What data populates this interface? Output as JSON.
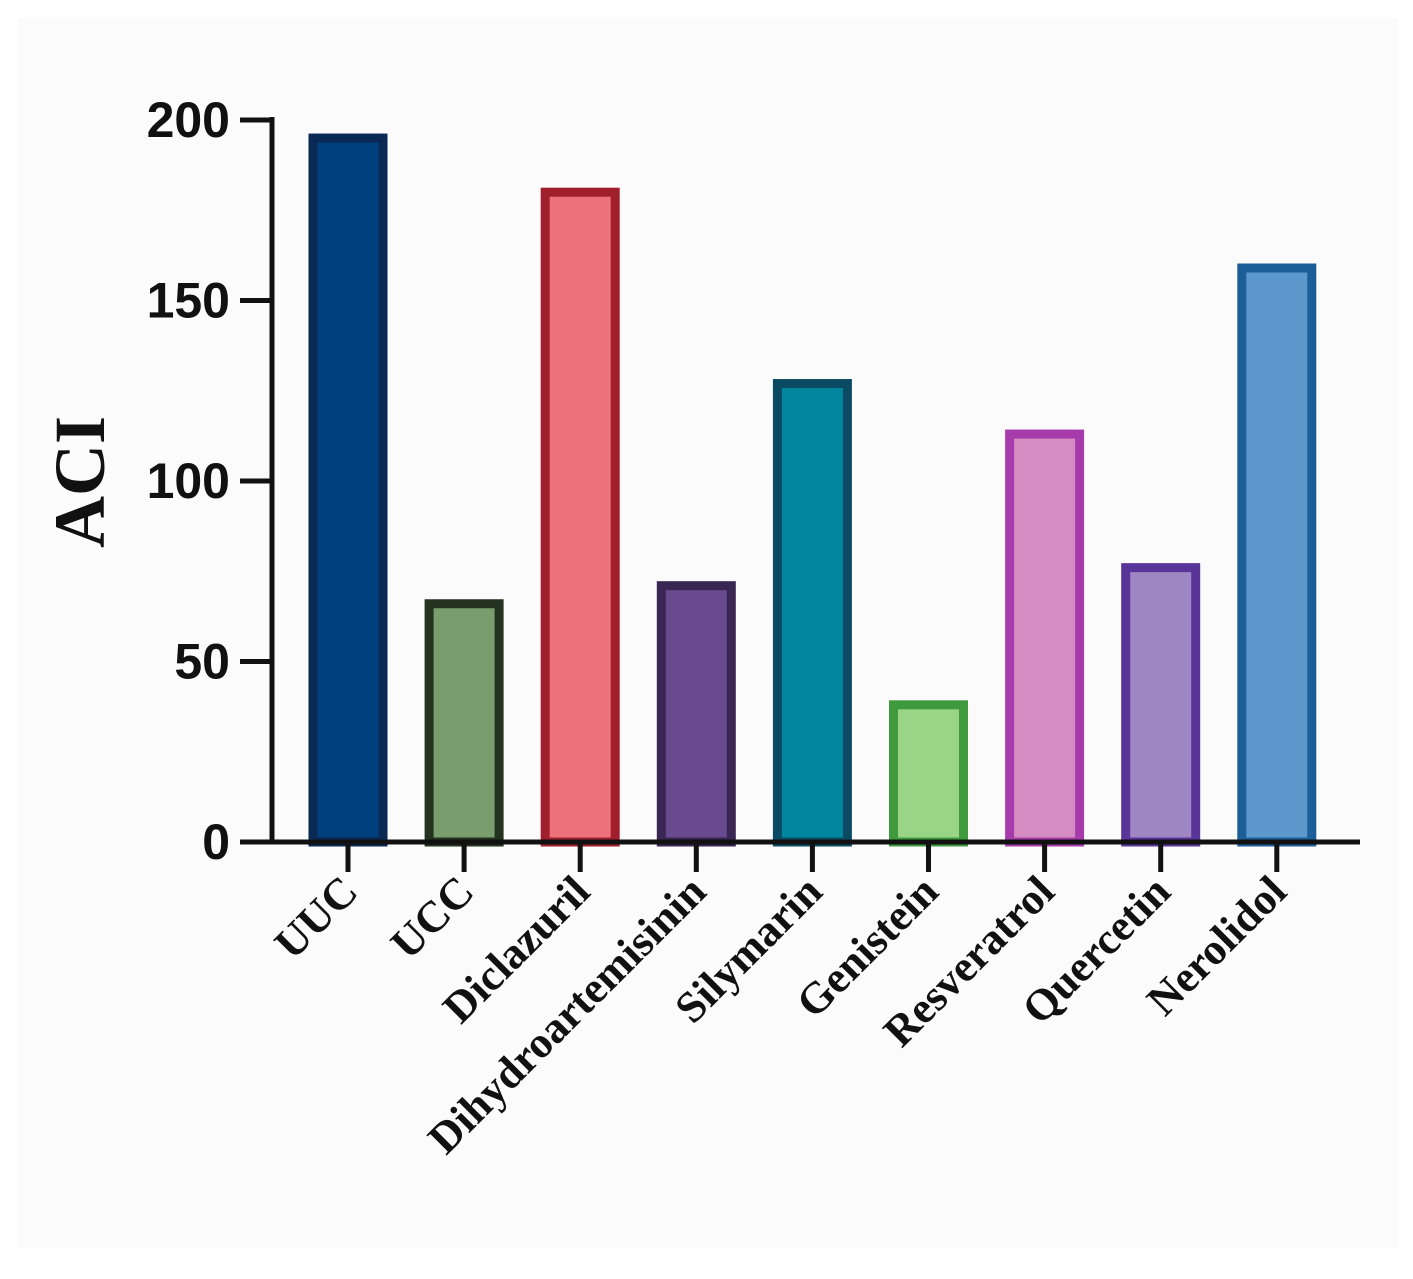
{
  "chart_data": {
    "type": "bar",
    "title": "",
    "xlabel": "",
    "ylabel": "ACI",
    "ylim": [
      0,
      200
    ],
    "yticks": [
      0,
      50,
      100,
      150,
      200
    ],
    "grid": false,
    "categories": [
      "UUC",
      "UCC",
      "Diclazuril",
      "Dihydroartemisinin",
      "Silymarin",
      "Genistein",
      "Resveratrol",
      "Quercetin",
      "Nerolidol"
    ],
    "values": [
      195,
      66,
      180,
      71,
      127,
      38,
      113,
      76,
      159
    ],
    "fill_colors": [
      "#003f7d",
      "#7a9d6d",
      "#ec717b",
      "#6a4a8f",
      "#00879f",
      "#9ad486",
      "#d48cc3",
      "#9d86c1",
      "#5c98cc"
    ],
    "edge_colors": [
      "#0a2a55",
      "#24331f",
      "#a11f2c",
      "#3a2652",
      "#0a4b63",
      "#3f9a3d",
      "#a73bab",
      "#5a3599",
      "#1b5e98"
    ]
  }
}
